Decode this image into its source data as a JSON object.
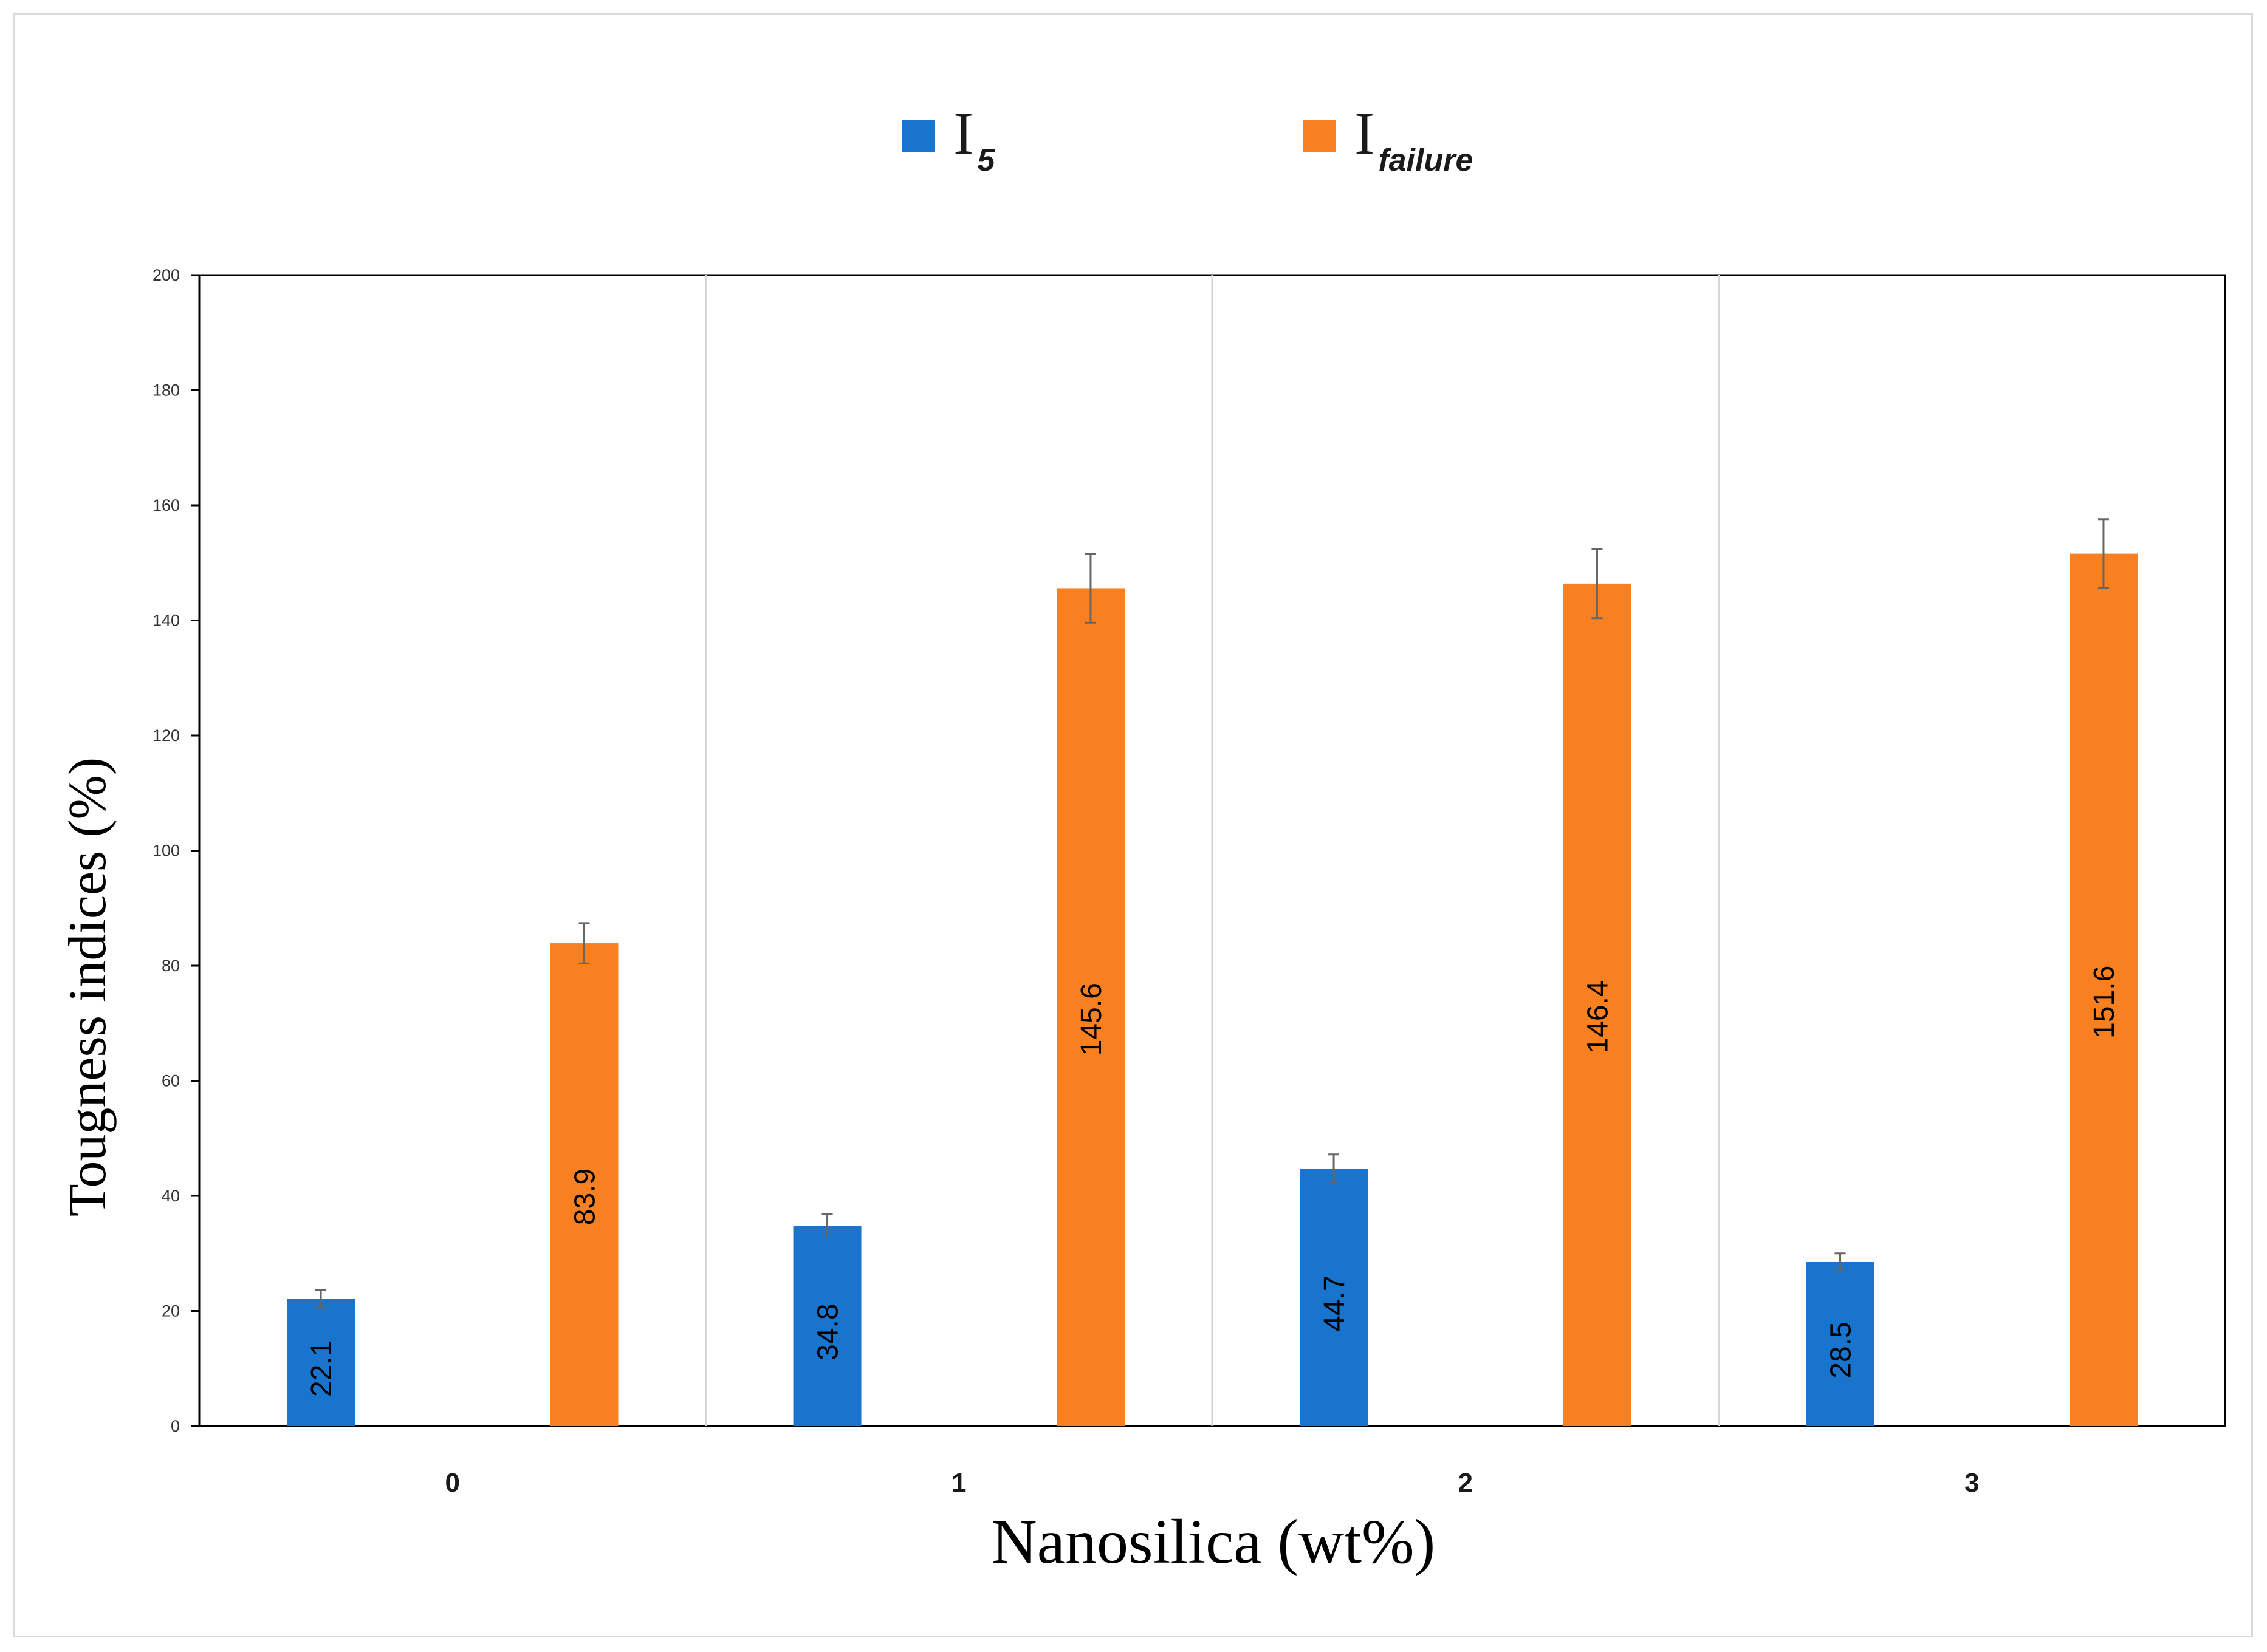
{
  "chart_data": {
    "type": "bar",
    "categories": [
      "0",
      "1",
      "2",
      "3"
    ],
    "series": [
      {
        "name": "I5",
        "legend_main": "I",
        "legend_sub": "5",
        "color": "#1874CD",
        "values": [
          22.1,
          34.8,
          44.7,
          28.5
        ],
        "errors": [
          1.5,
          2.0,
          2.5,
          1.5
        ],
        "labels": [
          "22.1",
          "34.8",
          "44.7",
          "28.5"
        ]
      },
      {
        "name": "Ifailure",
        "legend_main": "I",
        "legend_sub": "failure",
        "color": "#F98020",
        "values": [
          83.9,
          145.6,
          146.4,
          151.6
        ],
        "errors": [
          3.5,
          6.0,
          6.0,
          6.0
        ],
        "labels": [
          "83.9",
          "145.6",
          "146.4",
          "151.6"
        ]
      }
    ],
    "xlabel": "Nanosilica (wt%)",
    "ylabel": "Tougness indices (%)",
    "ylim": [
      0,
      200
    ],
    "yticks": [
      "0",
      "20",
      "40",
      "60",
      "80",
      "100",
      "120",
      "140",
      "160",
      "180",
      "200"
    ],
    "legend_position": "top-center",
    "grid": "vertical-separators"
  }
}
